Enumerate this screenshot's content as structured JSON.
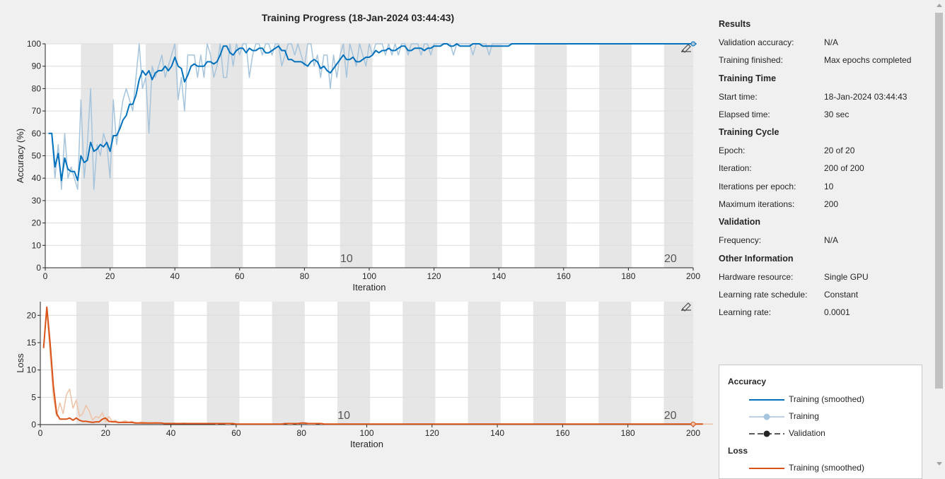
{
  "title": "Training Progress (18-Jan-2024 03:44:43)",
  "chart_data": [
    {
      "type": "line",
      "name": "accuracy",
      "ylabel": "Accuracy (%)",
      "xlabel": "Iteration",
      "xlim": [
        0,
        200
      ],
      "ylim": [
        0,
        100
      ],
      "xticks": [
        "0",
        "20",
        "40",
        "60",
        "80",
        "100",
        "120",
        "140",
        "160",
        "180",
        "200"
      ],
      "yticks": [
        "0",
        "10",
        "20",
        "30",
        "40",
        "50",
        "60",
        "70",
        "80",
        "90",
        "100"
      ],
      "epoch_labels": [
        {
          "x": 93,
          "text": "10"
        },
        {
          "x": 193,
          "text": "20"
        }
      ],
      "grid": true,
      "series": [
        {
          "name": "Training",
          "color": "#a6c4dc",
          "values": [
            60,
            60,
            40,
            55,
            35,
            60,
            40,
            45,
            40,
            35,
            75,
            40,
            55,
            80,
            35,
            55,
            50,
            60,
            55,
            40,
            75,
            55,
            65,
            75,
            80,
            75,
            70,
            85,
            100,
            80,
            85,
            60,
            90,
            85,
            90,
            95,
            85,
            90,
            95,
            100,
            75,
            85,
            70,
            95,
            95,
            95,
            85,
            95,
            85,
            100,
            95,
            85,
            90,
            100,
            85,
            85,
            100,
            90,
            100,
            95,
            100,
            100,
            85,
            95,
            100,
            100,
            95,
            100,
            100,
            95,
            100,
            100,
            90,
            95,
            100,
            100,
            95,
            100,
            95,
            90,
            100,
            100,
            90,
            95,
            85,
            95,
            95,
            80,
            95,
            85,
            95,
            100,
            85,
            100,
            95,
            90,
            100,
            95,
            90,
            100,
            95,
            100,
            100,
            100,
            95,
            100,
            95,
            100,
            95,
            100,
            100,
            95,
            100,
            100,
            100,
            95,
            100,
            100,
            95,
            100,
            100,
            100,
            100,
            100,
            100,
            95,
            100,
            100,
            100,
            100,
            100,
            95,
            100,
            100,
            100,
            100,
            95,
            100,
            100,
            100,
            100,
            100,
            100,
            100,
            100,
            100,
            100,
            100,
            100,
            100,
            100,
            100,
            100,
            100,
            100,
            100,
            100,
            100,
            100,
            100,
            100,
            100,
            100,
            100,
            100,
            100,
            100,
            100,
            100,
            100,
            100,
            100,
            100,
            100,
            100,
            100,
            100,
            100,
            100,
            100,
            100,
            100,
            100,
            100,
            100,
            100,
            100,
            100,
            100,
            100,
            100,
            100,
            100,
            100,
            100,
            100,
            100,
            100,
            100,
            100
          ]
        },
        {
          "name": "Training (smoothed)",
          "color": "#0072bd",
          "values": [
            60,
            60,
            45,
            51,
            39,
            49,
            44,
            43,
            43,
            39,
            50,
            47,
            48,
            56,
            52,
            53,
            55,
            54,
            56,
            52,
            59,
            59,
            62,
            66,
            68,
            73,
            73,
            77,
            84,
            88,
            86,
            88,
            84,
            87,
            88,
            88,
            90,
            88,
            90,
            94,
            90,
            89,
            83,
            86,
            90,
            91,
            90,
            90,
            90,
            92,
            92,
            91,
            92,
            95,
            99,
            99,
            96,
            95,
            97,
            98,
            98,
            96,
            98,
            97,
            97,
            98,
            98,
            96,
            96,
            97,
            98,
            99,
            97,
            97,
            93,
            93,
            92,
            92,
            92,
            91,
            90,
            92,
            93,
            92,
            89,
            90,
            88,
            87,
            89,
            91,
            93,
            95,
            93,
            93,
            94,
            92,
            92,
            93,
            94,
            94,
            95,
            97,
            96,
            97,
            97,
            98,
            97,
            97,
            98,
            99,
            99,
            97,
            97,
            98,
            98,
            98,
            97,
            98,
            98,
            99,
            99,
            99,
            100,
            100,
            99,
            99,
            100,
            99,
            99,
            99,
            99,
            100,
            100,
            100,
            99,
            99,
            99,
            99,
            99,
            99,
            99,
            99,
            99,
            100,
            100,
            100,
            100,
            100,
            100,
            100,
            100,
            100,
            100,
            100,
            100,
            100,
            100,
            100,
            100,
            100,
            100,
            100,
            100,
            100,
            100,
            100,
            100,
            100,
            100,
            100,
            100,
            100,
            100,
            100,
            100,
            100,
            100,
            100,
            100,
            100,
            100,
            100,
            100,
            100,
            100,
            100,
            100,
            100,
            100,
            100,
            100,
            100,
            100,
            100,
            100,
            100,
            100,
            100,
            100,
            100,
            100
          ]
        }
      ]
    },
    {
      "type": "line",
      "name": "loss",
      "ylabel": "Loss",
      "xlabel": "Iteration",
      "xlim": [
        0,
        200
      ],
      "ylim": [
        0,
        22.5
      ],
      "xticks": [
        "0",
        "20",
        "40",
        "60",
        "80",
        "100",
        "120",
        "140",
        "160",
        "180",
        "200"
      ],
      "yticks": [
        "0",
        "5",
        "10",
        "15",
        "20"
      ],
      "epoch_labels": [
        {
          "x": 93,
          "text": "10"
        },
        {
          "x": 193,
          "text": "20"
        }
      ],
      "grid": true,
      "series": [
        {
          "name": "Training",
          "color": "#f0c2a5",
          "values": [
            14,
            21,
            13,
            5,
            1.5,
            4,
            2,
            5.5,
            6.5,
            3,
            4.5,
            1.5,
            2,
            3.5,
            2.5,
            0.8,
            1.5,
            1.2,
            2.2,
            0.5,
            1.5,
            0.6,
            0.8,
            0.3,
            0.5,
            0.7,
            0.4,
            0.6,
            0.4,
            0.3,
            0.5,
            0.4,
            0.3,
            0.2,
            0.4,
            0.3,
            0.3,
            0.2,
            0.3,
            0.2,
            0.3,
            0.2,
            0.2,
            0.3,
            0.2,
            0.2,
            0.2,
            0.2,
            0.2,
            0.2,
            0.2,
            0.2,
            0.2,
            0.1,
            0.2,
            0.2,
            0.1,
            0.1,
            0.2,
            0.1,
            0.1,
            0.1,
            0.1,
            0.1,
            0.1,
            0.1,
            0.1,
            0.1,
            0.1,
            0.1,
            0.1,
            0.1,
            0.1,
            0.1,
            0.2,
            0.1,
            0.1,
            0.2,
            0.1,
            0.3,
            0.2,
            0.1,
            0.1,
            0.1,
            0.2,
            0.1,
            0.1,
            0.1,
            0.1,
            0.1,
            0.1,
            0.1,
            0.1,
            0.1,
            0.1,
            0.1,
            0.1,
            0.1,
            0.1,
            0.1,
            0.1,
            0.1,
            0.1,
            0.1,
            0.1,
            0.1,
            0.1,
            0.1,
            0.1,
            0.1,
            0.1,
            0.1,
            0.1,
            0.1,
            0.1,
            0.1,
            0.1,
            0.1,
            0.1,
            0.1,
            0.1,
            0.1,
            0.1,
            0.1,
            0.1,
            0.1,
            0.1,
            0.1,
            0.1,
            0.1,
            0.1,
            0.1,
            0.1,
            0.1,
            0.1,
            0.1,
            0.1,
            0.1,
            0.1,
            0.1,
            0.1,
            0.1,
            0.1,
            0.1,
            0.1,
            0.1,
            0.1,
            0.1,
            0.1,
            0.1,
            0.1,
            0.1,
            0.1,
            0.1,
            0.1,
            0.1,
            0.1,
            0.1,
            0.1,
            0.1,
            0.1,
            0.1,
            0.1,
            0.1,
            0.1,
            0.1,
            0.1,
            0.1,
            0.1,
            0.1,
            0.1,
            0.1,
            0.1,
            0.1,
            0.1,
            0.1,
            0.1,
            0.1,
            0.1,
            0.1,
            0.1,
            0.1,
            0.1,
            0.1,
            0.1,
            0.1,
            0.1,
            0.1,
            0.1,
            0.1,
            0.1,
            0.1,
            0.1,
            0.1,
            0.1,
            0.1,
            0.1,
            0.1,
            0.1,
            0.1,
            0.1,
            0.1,
            0.1,
            0.1,
            0.1,
            0.1
          ]
        },
        {
          "name": "Training (smoothed)",
          "color": "#d95319",
          "values": [
            14,
            21.5,
            15,
            7,
            2,
            1,
            1,
            1,
            1.2,
            0.8,
            1.2,
            0.8,
            0.6,
            0.6,
            0.5,
            0.4,
            0.5,
            0.5,
            1.0,
            1.2,
            0.6,
            0.5,
            0.5,
            0.4,
            0.4,
            0.4,
            0.4,
            0.4,
            0.3,
            0.3,
            0.3,
            0.3,
            0.3,
            0.3,
            0.3,
            0.3,
            0.3,
            0.2,
            0.2,
            0.2,
            0.2,
            0.2,
            0.2,
            0.2,
            0.2,
            0.2,
            0.2,
            0.2,
            0.2,
            0.2,
            0.2,
            0.2,
            0.2,
            0.2,
            0.2,
            0.2,
            0.2,
            0.2,
            0.2,
            0.1,
            0.1,
            0.1,
            0.1,
            0.1,
            0.1,
            0.1,
            0.1,
            0.1,
            0.1,
            0.1,
            0.1,
            0.1,
            0.1,
            0.1,
            0.2,
            0.2,
            0.2,
            0.2,
            0.2,
            0.3,
            0.3,
            0.2,
            0.2,
            0.2,
            0.2,
            0.2,
            0.1,
            0.1,
            0.1,
            0.1,
            0.1,
            0.1,
            0.1,
            0.1,
            0.1,
            0.1,
            0.1,
            0.1,
            0.1,
            0.1,
            0.1,
            0.1,
            0.1,
            0.1,
            0.1,
            0.1,
            0.1,
            0.1,
            0.1,
            0.1,
            0.1,
            0.1,
            0.1,
            0.1,
            0.1,
            0.1,
            0.1,
            0.1,
            0.1,
            0.1,
            0.1,
            0.1,
            0.1,
            0.1,
            0.1,
            0.1,
            0.1,
            0.1,
            0.1,
            0.1,
            0.1,
            0.1,
            0.1,
            0.1,
            0.1,
            0.1,
            0.1,
            0.1,
            0.1,
            0.1,
            0.1,
            0.1,
            0.1,
            0.1,
            0.1,
            0.1,
            0.1,
            0.1,
            0.1,
            0.1,
            0.1,
            0.1,
            0.1,
            0.1,
            0.1,
            0.1,
            0.1,
            0.1,
            0.1,
            0.1,
            0.1,
            0.1,
            0.1,
            0.1,
            0.1,
            0.1,
            0.1,
            0.1,
            0.1,
            0.1,
            0.1,
            0.1,
            0.1,
            0.1,
            0.1,
            0.1,
            0.1,
            0.1,
            0.1,
            0.1,
            0.1,
            0.1,
            0.1,
            0.1,
            0.1,
            0.1,
            0.1,
            0.1,
            0.1,
            0.1,
            0.1,
            0.1,
            0.1,
            0.1,
            0.1,
            0.1,
            0.1,
            0.1,
            0.1,
            0.1,
            0.1,
            0.1,
            0.1
          ]
        }
      ]
    }
  ],
  "results": {
    "sections": [
      {
        "title": "Results",
        "rows": [
          {
            "label": "Validation accuracy:",
            "value": "N/A"
          },
          {
            "label": "Training finished:",
            "value": "Max epochs completed"
          }
        ]
      },
      {
        "title": "Training Time",
        "rows": [
          {
            "label": "Start time:",
            "value": "18-Jan-2024 03:44:43"
          },
          {
            "label": "Elapsed time:",
            "value": "30 sec"
          }
        ]
      },
      {
        "title": "Training Cycle",
        "rows": [
          {
            "label": "Epoch:",
            "value": "20 of 20"
          },
          {
            "label": "Iteration:",
            "value": "200 of 200"
          },
          {
            "label": "Iterations per epoch:",
            "value": "10"
          },
          {
            "label": "Maximum iterations:",
            "value": "200"
          }
        ]
      },
      {
        "title": "Validation",
        "rows": [
          {
            "label": "Frequency:",
            "value": "N/A"
          }
        ]
      },
      {
        "title": "Other Information",
        "rows": [
          {
            "label": "Hardware resource:",
            "value": "Single GPU"
          },
          {
            "label": "Learning rate schedule:",
            "value": "Constant"
          },
          {
            "label": "Learning rate:",
            "value": "0.0001"
          }
        ]
      }
    ]
  },
  "legend": {
    "accuracy_title": "Accuracy",
    "loss_title": "Loss",
    "accuracy_items": [
      {
        "label": "Training (smoothed)",
        "color": "#0072bd",
        "style": "line"
      },
      {
        "label": "Training",
        "color": "#a6c4dc",
        "style": "dot"
      },
      {
        "label": "Validation",
        "color": "#262626",
        "style": "dash-dot"
      }
    ],
    "loss_items": [
      {
        "label": "Training (smoothed)",
        "color": "#d95319",
        "style": "line"
      }
    ]
  },
  "colors": {
    "band": "#e6e6e6",
    "grid": "#dcdcdc",
    "axis": "#262626"
  }
}
